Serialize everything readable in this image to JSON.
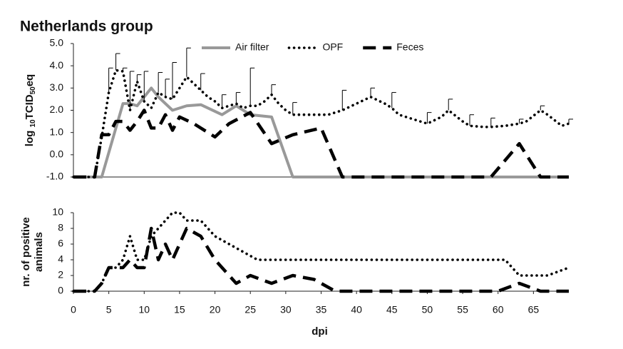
{
  "chart_data": [
    {
      "type": "line",
      "title": "Netherlands group",
      "ylabel": [
        "log ",
        "10",
        "TCID",
        "50",
        "eq"
      ],
      "xlim": [
        0,
        70
      ],
      "ylim": [
        -1,
        5
      ],
      "yticks": [
        {
          "value": 5,
          "label": "5.0"
        },
        {
          "value": 4,
          "label": "4.0"
        },
        {
          "value": 3,
          "label": "3.0"
        },
        {
          "value": 2,
          "label": "2.0"
        },
        {
          "value": 1,
          "label": "1.0"
        },
        {
          "value": 0,
          "label": "0.0"
        },
        {
          "value": -1,
          "label": "-1.0"
        }
      ],
      "legend": "top",
      "series": [
        {
          "name": "Air filter",
          "color": "#999999",
          "style": "solid",
          "x": [
            0,
            4,
            7,
            8,
            9,
            11,
            12,
            14,
            16,
            18,
            21,
            23,
            25,
            28,
            31,
            70
          ],
          "values": [
            -1,
            -1,
            2.3,
            2.3,
            2.2,
            3.0,
            2.6,
            2.0,
            2.2,
            2.25,
            1.8,
            2.2,
            1.8,
            1.7,
            -1,
            -1
          ]
        },
        {
          "name": "OPF",
          "color": "#000000",
          "style": "dotted",
          "x": [
            0,
            3,
            4,
            5,
            6,
            7,
            8,
            9,
            10,
            11,
            12,
            13,
            14,
            15,
            16,
            17,
            18,
            19,
            20,
            21,
            22,
            23,
            24,
            25,
            26,
            27,
            28,
            29,
            30,
            31,
            33,
            36,
            38,
            40,
            42,
            44,
            45,
            46,
            48,
            50,
            52,
            53,
            55,
            56,
            58,
            59,
            61,
            63,
            64,
            66,
            67,
            69,
            70
          ],
          "values": [
            -1,
            -1,
            0.8,
            2.8,
            3.8,
            3.75,
            2.0,
            3.3,
            2.4,
            2.1,
            2.8,
            2.6,
            2.5,
            3.0,
            3.5,
            3.2,
            2.9,
            2.6,
            2.4,
            2.1,
            2.2,
            2.3,
            2.1,
            2.2,
            2.2,
            2.4,
            2.7,
            2.3,
            2.0,
            1.8,
            1.8,
            1.8,
            2.0,
            2.3,
            2.6,
            2.3,
            2.1,
            1.8,
            1.6,
            1.4,
            1.7,
            2.0,
            1.5,
            1.3,
            1.25,
            1.25,
            1.3,
            1.4,
            1.5,
            2.0,
            1.8,
            1.3,
            1.4
          ],
          "errors": [
            null,
            null,
            null,
            1.1,
            0.75,
            0.15,
            1.75,
            0.3,
            1.35,
            null,
            0.9,
            0.8,
            1.65,
            null,
            1.3,
            null,
            0.75,
            null,
            null,
            0.6,
            null,
            0.5,
            null,
            1.7,
            null,
            null,
            0.45,
            null,
            null,
            0.55,
            null,
            null,
            0.9,
            null,
            0.4,
            null,
            0.7,
            null,
            null,
            0.5,
            null,
            0.5,
            null,
            0.5,
            null,
            0.4,
            null,
            0.2,
            null,
            0.2,
            null,
            null,
            0.2
          ]
        },
        {
          "name": "Feces",
          "color": "#000000",
          "style": "dashed",
          "x": [
            0,
            3,
            4,
            5,
            6,
            7,
            8,
            9,
            10,
            11,
            12,
            13,
            14,
            15,
            17,
            20,
            22,
            25,
            28,
            31,
            35,
            38,
            59,
            63,
            66,
            70
          ],
          "values": [
            -1,
            -1,
            0.9,
            0.9,
            1.5,
            1.5,
            1.1,
            1.5,
            2.0,
            1.2,
            1.2,
            1.8,
            1.1,
            1.7,
            1.4,
            0.8,
            1.4,
            1.9,
            0.5,
            0.9,
            1.2,
            -1,
            -1,
            0.5,
            -1,
            -1
          ]
        }
      ]
    },
    {
      "type": "line",
      "ylabel": [
        "nr. of positive",
        "animals"
      ],
      "xlabel": "dpi",
      "xlim": [
        0,
        70
      ],
      "xticks": [
        0,
        5,
        10,
        15,
        20,
        25,
        30,
        35,
        40,
        45,
        50,
        55,
        60,
        65
      ],
      "ylim": [
        0,
        10
      ],
      "yticks": [
        0,
        2,
        4,
        6,
        8,
        10
      ],
      "series": [
        {
          "name": "OPF",
          "color": "#000000",
          "style": "dotted",
          "x": [
            0,
            3,
            4,
            5,
            6,
            7,
            8,
            9,
            10,
            11,
            12,
            13,
            14,
            15,
            16,
            17,
            18,
            19,
            20,
            22,
            24,
            26,
            30,
            35,
            40,
            45,
            50,
            55,
            60,
            61,
            63,
            65,
            67,
            70
          ],
          "values": [
            0,
            0,
            1,
            3,
            3,
            4,
            7,
            4,
            4,
            7,
            8,
            9,
            10,
            10,
            9,
            9,
            9,
            8,
            7,
            6,
            5,
            4,
            4,
            4,
            4,
            4,
            4,
            4,
            4,
            4,
            2,
            2,
            2,
            3
          ]
        },
        {
          "name": "Feces",
          "color": "#000000",
          "style": "dashed",
          "x": [
            0,
            3,
            4,
            5,
            6,
            7,
            8,
            9,
            10,
            11,
            12,
            13,
            14,
            15,
            16,
            18,
            20,
            23,
            25,
            28,
            31,
            34,
            37,
            40,
            60,
            63,
            66,
            70
          ],
          "values": [
            0,
            0,
            1,
            3,
            3,
            3,
            4,
            3,
            3,
            8,
            4,
            6,
            4,
            6,
            8,
            7,
            4,
            1,
            2,
            1,
            2,
            1.5,
            0,
            0,
            0,
            1,
            0,
            0
          ]
        }
      ]
    }
  ]
}
